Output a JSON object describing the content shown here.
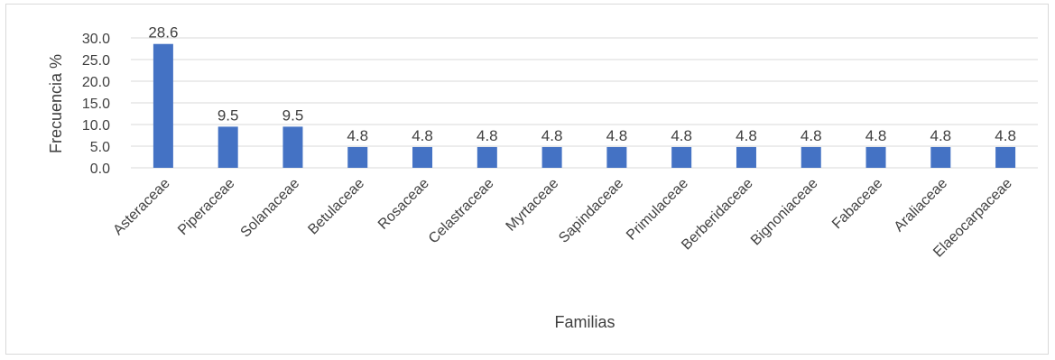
{
  "chart_data": {
    "type": "bar",
    "title": "",
    "xlabel": "Familias",
    "ylabel": "Frecuencia %",
    "ylim": [
      0,
      30
    ],
    "yticks": [
      "0.0",
      "5.0",
      "10.0",
      "15.0",
      "20.0",
      "25.0",
      "30.0"
    ],
    "grid": true,
    "legend": "none",
    "bar_color": "#4472C4",
    "categories": [
      "Asteraceae",
      "Piperaceae",
      "Solanaceae",
      "Betulaceae",
      "Rosaceae",
      "Celastraceae",
      "Myrtaceae",
      "Sapindaceae",
      "Primulaceae",
      "Berberidaceae",
      "Bignoniaceae",
      "Fabaceae",
      "Araliaceae",
      "Elaeocarpaceae"
    ],
    "values": [
      28.6,
      9.5,
      9.5,
      4.8,
      4.8,
      4.8,
      4.8,
      4.8,
      4.8,
      4.8,
      4.8,
      4.8,
      4.8,
      4.8
    ],
    "data_labels": [
      "28.6",
      "9.5",
      "9.5",
      "4.8",
      "4.8",
      "4.8",
      "4.8",
      "4.8",
      "4.8",
      "4.8",
      "4.8",
      "4.8",
      "4.8",
      "4.8"
    ]
  }
}
